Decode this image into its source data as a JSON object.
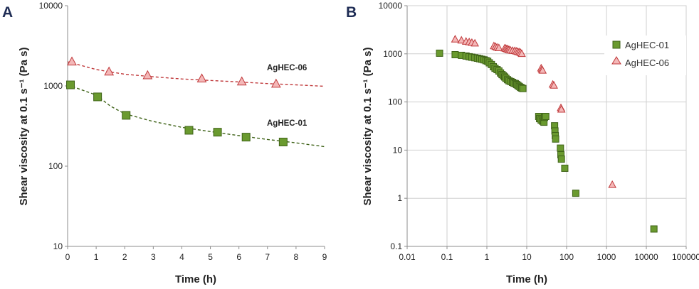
{
  "colors": {
    "green_fill": "#6a9a2f",
    "green_edge": "#3f6318",
    "pink_fill": "#f4b8b8",
    "pink_edge": "#c0393b",
    "grid": "#cfcfcf",
    "axis": "#8c8c8c"
  },
  "chart_data": [
    {
      "panel": "A",
      "type": "scatter",
      "xlabel": "Time (h)",
      "ylabel": "Shear viscosity at 0.1 s⁻¹ (Pa s)",
      "xlim": [
        0,
        9
      ],
      "ylim": [
        10,
        10000
      ],
      "x_scale": "linear",
      "y_scale": "log",
      "x_ticks": [
        "0",
        "1",
        "2",
        "3",
        "4",
        "5",
        "6",
        "7",
        "8",
        "9"
      ],
      "y_ticks": [
        "10",
        "100",
        "1000",
        "10000"
      ],
      "series": [
        {
          "name": "AgHEC-06",
          "marker": "triangle",
          "points": [
            [
              0.15,
              2000
            ],
            [
              1.45,
              1500
            ],
            [
              2.8,
              1350
            ],
            [
              4.7,
              1230
            ],
            [
              6.1,
              1130
            ],
            [
              7.3,
              1060
            ]
          ],
          "trendline": [
            [
              0,
              2000
            ],
            [
              1,
              1600
            ],
            [
              2,
              1400
            ],
            [
              3,
              1300
            ],
            [
              4,
              1220
            ],
            [
              5,
              1170
            ],
            [
              6,
              1120
            ],
            [
              7,
              1070
            ],
            [
              8,
              1030
            ],
            [
              9,
              990
            ]
          ]
        },
        {
          "name": "AgHEC-01",
          "marker": "square",
          "points": [
            [
              0.1,
              1030
            ],
            [
              1.05,
              730
            ],
            [
              2.05,
              430
            ],
            [
              4.25,
              280
            ],
            [
              5.25,
              265
            ],
            [
              6.25,
              230
            ],
            [
              7.55,
              200
            ]
          ],
          "trendline": [
            [
              0,
              1030
            ],
            [
              1,
              770
            ],
            [
              1.5,
              560
            ],
            [
              2,
              450
            ],
            [
              3,
              360
            ],
            [
              4,
              305
            ],
            [
              5,
              270
            ],
            [
              6,
              240
            ],
            [
              7,
              215
            ],
            [
              8,
              195
            ],
            [
              9,
              175
            ]
          ]
        }
      ]
    },
    {
      "panel": "B",
      "type": "scatter",
      "xlabel": "Time (h)",
      "ylabel": "Shear viscosity at 0.1 s⁻¹ (Pa s)",
      "xlim": [
        0.01,
        100000
      ],
      "ylim": [
        0.1,
        10000
      ],
      "x_scale": "log",
      "y_scale": "log",
      "x_ticks": [
        "0.01",
        "0.1",
        "1",
        "10",
        "100",
        "1000",
        "10000",
        "100000"
      ],
      "y_ticks": [
        "0.1",
        "1",
        "10",
        "100",
        "1000",
        "10000"
      ],
      "legend_position": "right",
      "series": [
        {
          "name": "AgHEC-01",
          "marker": "square",
          "points": [
            [
              0.065,
              1030
            ],
            [
              0.16,
              960
            ],
            [
              0.23,
              930
            ],
            [
              0.3,
              900
            ],
            [
              0.36,
              870
            ],
            [
              0.42,
              850
            ],
            [
              0.5,
              830
            ],
            [
              0.58,
              810
            ],
            [
              0.66,
              790
            ],
            [
              0.75,
              770
            ],
            [
              0.85,
              750
            ],
            [
              0.95,
              720
            ],
            [
              1.05,
              700
            ],
            [
              1.15,
              650
            ],
            [
              1.3,
              600
            ],
            [
              1.45,
              540
            ],
            [
              1.6,
              500
            ],
            [
              1.8,
              470
            ],
            [
              2.0,
              440
            ],
            [
              2.2,
              400
            ],
            [
              2.4,
              370
            ],
            [
              2.6,
              350
            ],
            [
              2.8,
              330
            ],
            [
              3.0,
              310
            ],
            [
              3.3,
              290
            ],
            [
              3.6,
              275
            ],
            [
              4.0,
              265
            ],
            [
              4.4,
              255
            ],
            [
              4.8,
              245
            ],
            [
              5.2,
              240
            ],
            [
              5.6,
              230
            ],
            [
              6.0,
              220
            ],
            [
              6.5,
              210
            ],
            [
              7.0,
              200
            ],
            [
              7.5,
              195
            ],
            [
              8.0,
              190
            ],
            [
              20,
              50
            ],
            [
              21,
              45
            ],
            [
              23,
              42
            ],
            [
              25,
              40
            ],
            [
              27,
              38
            ],
            [
              28,
              48
            ],
            [
              30,
              50
            ],
            [
              50,
              32
            ],
            [
              51,
              25
            ],
            [
              52,
              20
            ],
            [
              53,
              17
            ],
            [
              70,
              11
            ],
            [
              72,
              8
            ],
            [
              74,
              6.5
            ],
            [
              90,
              4.2
            ],
            [
              170,
              1.27
            ],
            [
              15500,
              0.23
            ]
          ]
        },
        {
          "name": "AgHEC-06",
          "marker": "triangle",
          "points": [
            [
              0.16,
              2000
            ],
            [
              0.23,
              1900
            ],
            [
              0.3,
              1800
            ],
            [
              0.36,
              1750
            ],
            [
              0.42,
              1700
            ],
            [
              0.5,
              1650
            ],
            [
              1.5,
              1450
            ],
            [
              1.65,
              1400
            ],
            [
              1.8,
              1350
            ],
            [
              2.0,
              1320
            ],
            [
              2.8,
              1300
            ],
            [
              3.0,
              1280
            ],
            [
              3.2,
              1250
            ],
            [
              3.4,
              1230
            ],
            [
              3.6,
              1200
            ],
            [
              3.9,
              1180
            ],
            [
              4.4,
              1160
            ],
            [
              5.0,
              1150
            ],
            [
              5.5,
              1120
            ],
            [
              6.0,
              1100
            ],
            [
              6.5,
              1080
            ],
            [
              7.0,
              1050
            ],
            [
              7.5,
              1000
            ],
            [
              23,
              500
            ],
            [
              24,
              470
            ],
            [
              25,
              450
            ],
            [
              45,
              230
            ],
            [
              48,
              220
            ],
            [
              72,
              75
            ],
            [
              74,
              70
            ],
            [
              1400,
              1.9
            ]
          ]
        }
      ]
    }
  ]
}
